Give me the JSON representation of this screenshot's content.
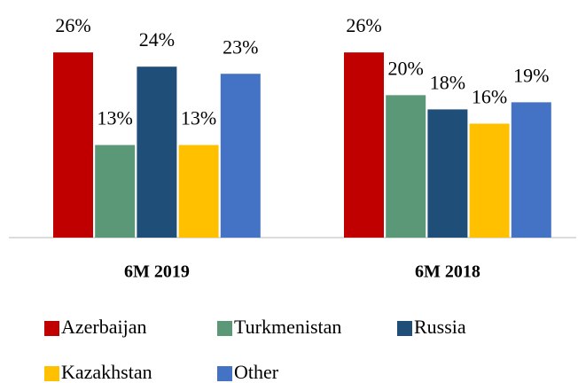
{
  "chart_data": {
    "type": "bar",
    "categories": [
      "6M 2019",
      "6M 2018"
    ],
    "series": [
      {
        "name": "Azerbaijan",
        "color": "#c00000",
        "values": [
          26,
          26
        ],
        "value_labels": [
          "26%",
          "26%"
        ]
      },
      {
        "name": "Turkmenistan",
        "color": "#5b9877",
        "values": [
          13,
          20
        ],
        "value_labels": [
          "13%",
          "20%"
        ]
      },
      {
        "name": "Russia",
        "color": "#1f4e79",
        "values": [
          24,
          18
        ],
        "value_labels": [
          "24%",
          "18%"
        ]
      },
      {
        "name": "Kazakhstan",
        "color": "#ffc000",
        "values": [
          13,
          16
        ],
        "value_labels": [
          "13%",
          "16%"
        ]
      },
      {
        "name": "Other",
        "color": "#4472c4",
        "values": [
          23,
          19
        ],
        "value_labels": [
          "23%",
          "19%"
        ]
      }
    ],
    "ylim": [
      0,
      30
    ]
  }
}
